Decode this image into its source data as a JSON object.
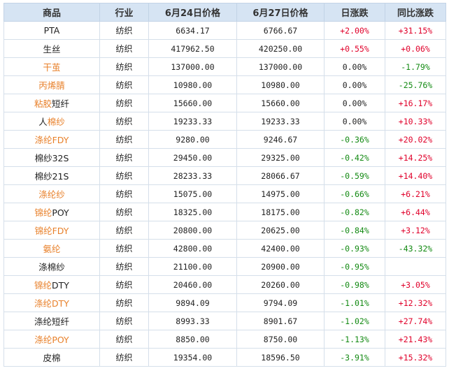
{
  "table": {
    "headers": [
      "商品",
      "行业",
      "6月24日价格",
      "6月27日价格",
      "日涨跌",
      "同比涨跌"
    ],
    "rows": [
      {
        "name": "PTA",
        "industry": "纺织",
        "price1": "6634.17",
        "price2": "6766.67",
        "daily": "+2.00%",
        "yoy": "+31.15%",
        "name_style": "normal",
        "daily_dir": "up",
        "yoy_dir": "up"
      },
      {
        "name": "生丝",
        "industry": "纺织",
        "price1": "417962.50",
        "price2": "420250.00",
        "daily": "+0.55%",
        "yoy": "+0.06%",
        "name_style": "normal",
        "daily_dir": "up",
        "yoy_dir": "up"
      },
      {
        "name": "干茧",
        "industry": "纺织",
        "price1": "137000.00",
        "price2": "137000.00",
        "daily": "0.00%",
        "yoy": "-1.79%",
        "name_style": "hl",
        "daily_dir": "flat",
        "yoy_dir": "down"
      },
      {
        "name": "丙烯腈",
        "industry": "纺织",
        "price1": "10980.00",
        "price2": "10980.00",
        "daily": "0.00%",
        "yoy": "-25.76%",
        "name_style": "hl",
        "daily_dir": "flat",
        "yoy_dir": "down"
      },
      {
        "name": "粘胶短纤",
        "industry": "纺织",
        "price1": "15660.00",
        "price2": "15660.00",
        "daily": "0.00%",
        "yoy": "+16.17%",
        "name_style": "split",
        "split_at": 2,
        "split_first": "hl",
        "daily_dir": "flat",
        "yoy_dir": "up"
      },
      {
        "name": "人棉纱",
        "industry": "纺织",
        "price1": "19233.33",
        "price2": "19233.33",
        "daily": "0.00%",
        "yoy": "+10.33%",
        "name_style": "split",
        "split_at": 1,
        "split_first": "normal",
        "daily_dir": "flat",
        "yoy_dir": "up"
      },
      {
        "name": "涤纶FDY",
        "industry": "纺织",
        "price1": "9280.00",
        "price2": "9246.67",
        "daily": "-0.36%",
        "yoy": "+20.02%",
        "name_style": "hl",
        "daily_dir": "down",
        "yoy_dir": "up"
      },
      {
        "name": "棉纱32S",
        "industry": "纺织",
        "price1": "29450.00",
        "price2": "29325.00",
        "daily": "-0.42%",
        "yoy": "+14.25%",
        "name_style": "normal",
        "daily_dir": "down",
        "yoy_dir": "up"
      },
      {
        "name": "棉纱21S",
        "industry": "纺织",
        "price1": "28233.33",
        "price2": "28066.67",
        "daily": "-0.59%",
        "yoy": "+14.40%",
        "name_style": "normal",
        "daily_dir": "down",
        "yoy_dir": "up"
      },
      {
        "name": "涤纶纱",
        "industry": "纺织",
        "price1": "15075.00",
        "price2": "14975.00",
        "daily": "-0.66%",
        "yoy": "+6.21%",
        "name_style": "hl",
        "daily_dir": "down",
        "yoy_dir": "up"
      },
      {
        "name": "锦纶POY",
        "industry": "纺织",
        "price1": "18325.00",
        "price2": "18175.00",
        "daily": "-0.82%",
        "yoy": "+6.44%",
        "name_style": "split",
        "split_at": 2,
        "split_first": "hl",
        "daily_dir": "down",
        "yoy_dir": "up"
      },
      {
        "name": "锦纶FDY",
        "industry": "纺织",
        "price1": "20800.00",
        "price2": "20625.00",
        "daily": "-0.84%",
        "yoy": "+3.12%",
        "name_style": "hl",
        "daily_dir": "down",
        "yoy_dir": "up"
      },
      {
        "name": "氨纶",
        "industry": "纺织",
        "price1": "42800.00",
        "price2": "42400.00",
        "daily": "-0.93%",
        "yoy": "-43.32%",
        "name_style": "hl",
        "daily_dir": "down",
        "yoy_dir": "down"
      },
      {
        "name": "涤棉纱",
        "industry": "纺织",
        "price1": "21100.00",
        "price2": "20900.00",
        "daily": "-0.95%",
        "yoy": "",
        "name_style": "normal",
        "daily_dir": "down",
        "yoy_dir": "flat"
      },
      {
        "name": "锦纶DTY",
        "industry": "纺织",
        "price1": "20460.00",
        "price2": "20260.00",
        "daily": "-0.98%",
        "yoy": "+3.05%",
        "name_style": "split",
        "split_at": 2,
        "split_first": "hl",
        "daily_dir": "down",
        "yoy_dir": "up"
      },
      {
        "name": "涤纶DTY",
        "industry": "纺织",
        "price1": "9894.09",
        "price2": "9794.09",
        "daily": "-1.01%",
        "yoy": "+12.32%",
        "name_style": "hl",
        "daily_dir": "down",
        "yoy_dir": "up"
      },
      {
        "name": "涤纶短纤",
        "industry": "纺织",
        "price1": "8993.33",
        "price2": "8901.67",
        "daily": "-1.02%",
        "yoy": "+27.74%",
        "name_style": "normal",
        "daily_dir": "down",
        "yoy_dir": "up"
      },
      {
        "name": "涤纶POY",
        "industry": "纺织",
        "price1": "8850.00",
        "price2": "8750.00",
        "daily": "-1.13%",
        "yoy": "+21.43%",
        "name_style": "hl",
        "daily_dir": "down",
        "yoy_dir": "up"
      },
      {
        "name": "皮棉",
        "industry": "纺织",
        "price1": "19354.00",
        "price2": "18596.50",
        "daily": "-3.91%",
        "yoy": "+15.32%",
        "name_style": "normal",
        "daily_dir": "down",
        "yoy_dir": "up"
      }
    ]
  },
  "colors": {
    "up": "#e0002a",
    "down": "#138a13",
    "highlight": "#e8802a",
    "header_bg": "#d6e4f3"
  }
}
